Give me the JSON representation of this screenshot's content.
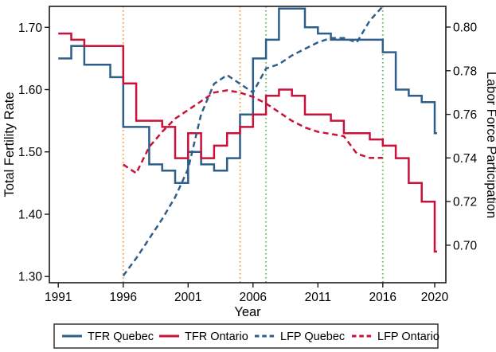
{
  "figure": {
    "background": "#ffffff",
    "axis_color": "#1a1a1a",
    "text_color": "#000000"
  },
  "chart_data": {
    "type": "line",
    "title": "",
    "xlabel": "Year",
    "ylabel_left": "Total Fertility Rate",
    "ylabel_right": "Labor Force Participation",
    "grid": false,
    "legend_position": "bottom",
    "x_domain": [
      1990.31,
      2020.86
    ],
    "y_left_domain": [
      1.29,
      1.7336
    ],
    "y_right_domain": [
      0.6828,
      0.8095
    ],
    "x_ticks": [
      1991,
      1996,
      2001,
      2006,
      2011,
      2016,
      2020
    ],
    "y_left_ticks": [
      1.3,
      1.4,
      1.5,
      1.6,
      1.7
    ],
    "y_left_tick_labels": [
      "1.30",
      "1.40",
      "1.50",
      "1.60",
      "1.70"
    ],
    "y_right_ticks": [
      0.7,
      0.72,
      0.74,
      0.76,
      0.78,
      0.8
    ],
    "y_right_tick_labels": [
      "0.70",
      "0.72",
      "0.74",
      "0.76",
      "0.78",
      "0.80"
    ],
    "series": [
      {
        "name": "TFR Quebec",
        "axis": "left",
        "style": "solid",
        "step": true,
        "color": "#2e5f8a",
        "start_year": 1991,
        "values": [
          1.65,
          1.67,
          1.64,
          1.64,
          1.62,
          1.54,
          1.54,
          1.48,
          1.47,
          1.45,
          1.5,
          1.48,
          1.47,
          1.49,
          1.56,
          1.65,
          1.68,
          1.73,
          1.73,
          1.7,
          1.69,
          1.68,
          1.68,
          1.68,
          1.68,
          1.66,
          1.6,
          1.59,
          1.58,
          1.53
        ]
      },
      {
        "name": "TFR Ontario",
        "axis": "left",
        "style": "solid",
        "step": true,
        "color": "#c9113a",
        "start_year": 1991,
        "values": [
          1.69,
          1.68,
          1.67,
          1.67,
          1.67,
          1.61,
          1.55,
          1.55,
          1.54,
          1.49,
          1.53,
          1.49,
          1.51,
          1.53,
          1.54,
          1.56,
          1.59,
          1.6,
          1.59,
          1.56,
          1.56,
          1.55,
          1.53,
          1.53,
          1.52,
          1.51,
          1.49,
          1.45,
          1.42,
          1.34
        ]
      },
      {
        "name": "LFP Quebec",
        "axis": "right",
        "style": "dashed",
        "step": false,
        "color": "#2e5f8a",
        "start_year": 1996,
        "values": [
          0.686,
          0.694,
          0.703,
          0.712,
          0.722,
          0.735,
          0.76,
          0.774,
          0.778,
          0.774,
          0.77,
          0.781,
          0.783,
          0.787,
          0.79,
          0.793,
          0.795,
          0.795,
          0.793,
          0.803,
          0.81
        ]
      },
      {
        "name": "LFP Ontario",
        "axis": "right",
        "style": "dashed",
        "step": false,
        "color": "#c9113a",
        "start_year": 1996,
        "values": [
          0.737,
          0.733,
          0.745,
          0.752,
          0.758,
          0.762,
          0.766,
          0.77,
          0.771,
          0.77,
          0.768,
          0.765,
          0.761,
          0.757,
          0.754,
          0.752,
          0.751,
          0.75,
          0.742,
          0.74,
          0.74
        ]
      }
    ],
    "reference_lines": [
      {
        "x": 1996,
        "color": "#f4a556",
        "style": "dotted"
      },
      {
        "x": 2005,
        "color": "#f4a556",
        "style": "dotted"
      },
      {
        "x": 2007,
        "color": "#72bd72",
        "style": "dotted"
      },
      {
        "x": 2016,
        "color": "#72bd72",
        "style": "dotted"
      }
    ]
  }
}
